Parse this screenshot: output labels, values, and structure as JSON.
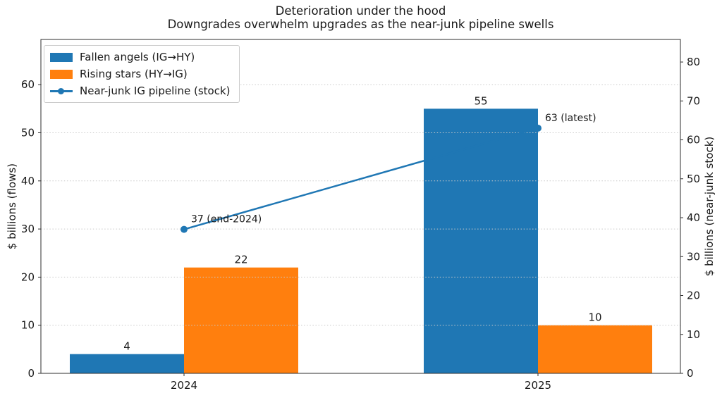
{
  "chart_data": {
    "type": "bar",
    "title": "Deterioration under the hood",
    "subtitle": "Downgrades overwhelm upgrades as the near-junk pipeline swells",
    "categories": [
      "2024",
      "2025"
    ],
    "series": [
      {
        "name": "Fallen angels (IG→HY)",
        "kind": "bar",
        "axis": "left",
        "color": "#1f77b4",
        "values": [
          4,
          55
        ]
      },
      {
        "name": "Rising stars (HY→IG)",
        "kind": "bar",
        "axis": "left",
        "color": "#ff7f0e",
        "values": [
          22,
          10
        ]
      },
      {
        "name": "Near-junk IG pipeline (stock)",
        "kind": "line",
        "axis": "right",
        "color": "#1f77b4",
        "values": [
          37,
          63
        ],
        "point_labels": [
          "37 (end-2024)",
          "63 (latest)"
        ]
      }
    ],
    "left_axis": {
      "label": "$ billions (flows)",
      "ticks": [
        0,
        10,
        20,
        30,
        40,
        50,
        60
      ],
      "ylim": [
        0,
        69.4
      ]
    },
    "right_axis": {
      "label": "$ billions (near-junk stock)",
      "ticks": [
        0,
        10,
        20,
        30,
        40,
        50,
        60,
        70,
        80
      ],
      "ylim": [
        0,
        85.8
      ]
    },
    "grid": {
      "axis": "y",
      "style": "dotted",
      "on": true
    },
    "legend_position": "upper left"
  },
  "colors": {
    "background": "#ffffff",
    "text": "#191919",
    "grid": "#c9c9c9",
    "spine": "#2e2e2e",
    "legend_border": "#cccccc",
    "blue": "#1f77b4",
    "orange": "#ff7f0e"
  }
}
